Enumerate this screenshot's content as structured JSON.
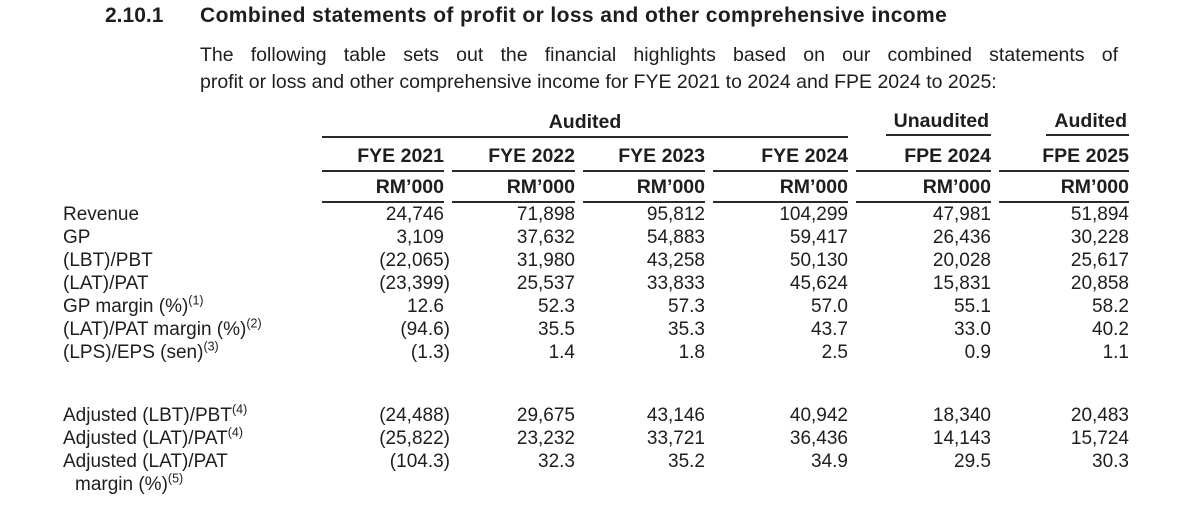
{
  "page": {
    "background": "#ffffff",
    "text_color": "#1f1d1e",
    "rule_color": "#2b2a29"
  },
  "section": {
    "number": "2.10.1",
    "title": "Combined statements of profit or loss and other comprehensive income"
  },
  "intro": {
    "lines": [
      "The following table sets out the financial highlights based on our combined statements of",
      "profit or loss and other comprehensive income for FYE 2021 to 2024 and FPE 2024 to 2025:"
    ]
  },
  "table": {
    "col_groups": [
      {
        "label": "Audited",
        "span": 4
      },
      {
        "label": "Unaudited",
        "span": 1
      },
      {
        "label": "Audited",
        "span": 1
      }
    ],
    "columns": [
      "FYE 2021",
      "FYE 2022",
      "FYE 2023",
      "FYE 2024",
      "FPE 2024",
      "FPE 2025"
    ],
    "units": [
      "RM’000",
      "RM’000",
      "RM’000",
      "RM’000",
      "RM’000",
      "RM’000"
    ],
    "rows": [
      {
        "label_lines": [
          {
            "text": "Revenue",
            "sup": ""
          }
        ],
        "values": [
          "24,746",
          "71,898",
          "95,812",
          "104,299",
          "47,981",
          "51,894"
        ]
      },
      {
        "label_lines": [
          {
            "text": "GP",
            "sup": ""
          }
        ],
        "values": [
          "3,109",
          "37,632",
          "54,883",
          "59,417",
          "26,436",
          "30,228"
        ]
      },
      {
        "label_lines": [
          {
            "text": "(LBT)/PBT",
            "sup": ""
          }
        ],
        "values": [
          "(22,065)",
          "31,980",
          "43,258",
          "50,130",
          "20,028",
          "25,617"
        ]
      },
      {
        "label_lines": [
          {
            "text": "(LAT)/PAT",
            "sup": ""
          }
        ],
        "values": [
          "(23,399)",
          "25,537",
          "33,833",
          "45,624",
          "15,831",
          "20,858"
        ]
      },
      {
        "label_lines": [
          {
            "text": "GP margin (%)",
            "sup": "(1)"
          }
        ],
        "values": [
          "12.6",
          "52.3",
          "57.3",
          "57.0",
          "55.1",
          "58.2"
        ]
      },
      {
        "label_lines": [
          {
            "text": "(LAT)/PAT margin (%)",
            "sup": "(2)"
          }
        ],
        "values": [
          "(94.6)",
          "35.5",
          "35.3",
          "43.7",
          "33.0",
          "40.2"
        ]
      },
      {
        "label_lines": [
          {
            "text": "(LPS)/EPS (sen)",
            "sup": "(3)"
          }
        ],
        "values": [
          "(1.3)",
          "1.4",
          "1.8",
          "2.5",
          "0.9",
          "1.1"
        ]
      },
      {
        "spacer": true
      },
      {
        "label_lines": [
          {
            "text": "Adjusted (LBT)/PBT",
            "sup": "(4)"
          }
        ],
        "values": [
          "(24,488)",
          "29,675",
          "43,146",
          "40,942",
          "18,340",
          "20,483"
        ]
      },
      {
        "label_lines": [
          {
            "text": "Adjusted (LAT)/PAT",
            "sup": "(4)"
          }
        ],
        "values": [
          "(25,822)",
          "23,232",
          "33,721",
          "36,436",
          "14,143",
          "15,724"
        ]
      },
      {
        "label_lines": [
          {
            "text": "Adjusted (LAT)/PAT",
            "sup": ""
          },
          {
            "text": "margin (%)",
            "sup": "(5)",
            "indent": true
          }
        ],
        "values": [
          "(104.3)",
          "32.3",
          "35.2",
          "34.9",
          "29.5",
          "30.3"
        ]
      }
    ]
  }
}
